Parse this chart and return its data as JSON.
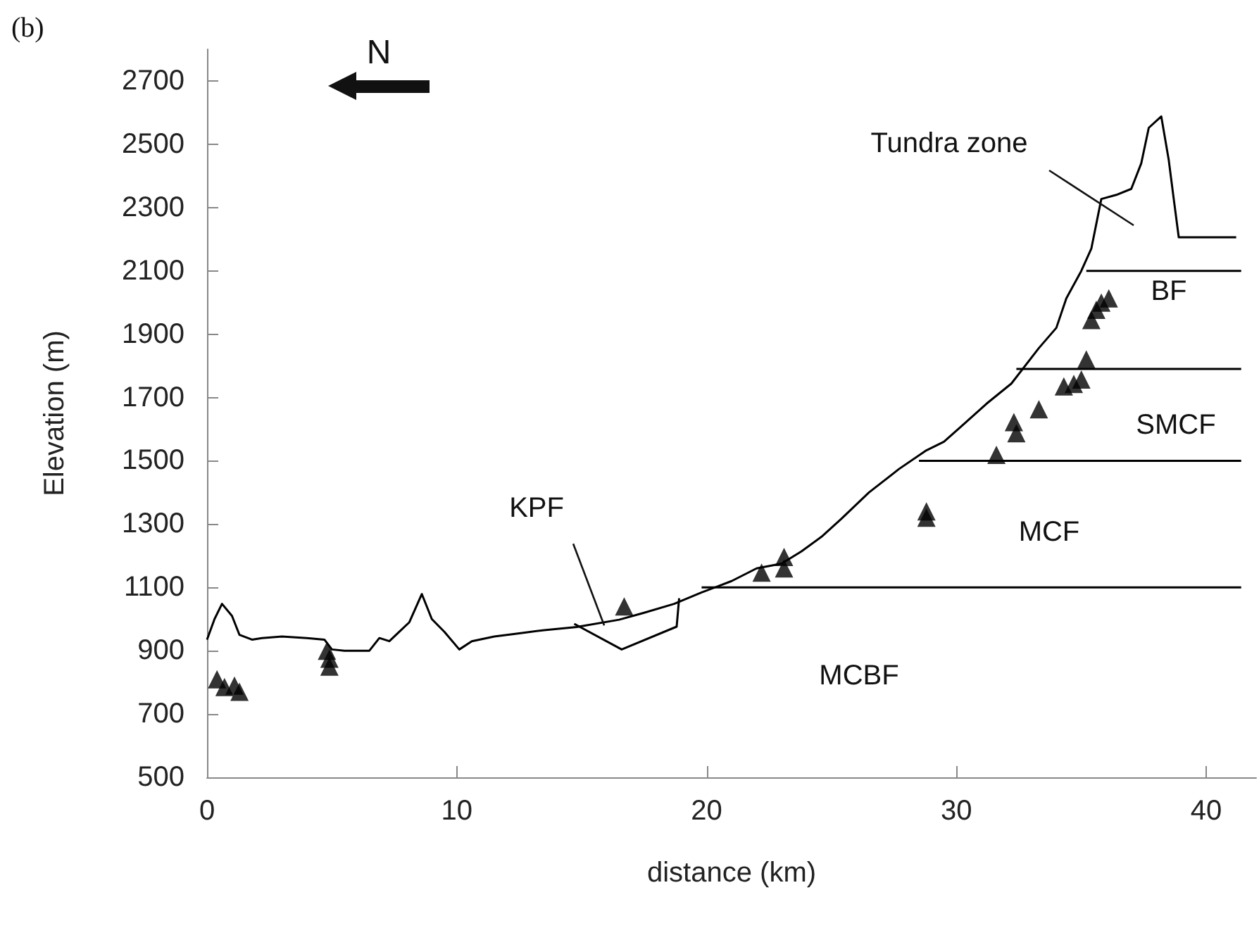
{
  "chart_data": {
    "type": "line",
    "xlabel": "distance (km)",
    "ylabel": "Elevation (m)",
    "annotations": [
      "(b)",
      "N",
      "Tundra zone",
      {
        "text": "KPF",
        "x": 15.9,
        "y": 980
      },
      "BF",
      "SMCF",
      "MCF",
      "MCBF"
    ],
    "series": [
      {
        "color": "#000000",
        "marker": "none",
        "x": [
          0,
          0.3,
          0.6,
          1.0,
          1.3,
          1.8,
          2.2,
          3.0,
          4.0,
          4.7,
          5.0,
          5.5,
          6.5,
          6.9,
          7.3,
          7.7,
          8.1,
          8.6,
          9.0,
          9.5,
          10.1,
          10.6,
          11.5,
          12.5,
          13.5,
          14.8,
          16.5,
          17.5,
          18.7,
          19.8,
          21.0,
          22.0,
          23.0,
          23.8,
          24.6,
          25.4,
          26.5,
          27.7,
          28.8,
          29.5,
          30.2,
          31.2,
          32.2,
          33.3,
          34.0,
          34.4,
          35.0,
          35.4,
          35.8,
          36.4,
          37.0,
          37.4,
          37.7,
          38.2,
          38.5,
          38.7,
          38.9,
          41.2
        ],
        "values": [
          935,
          1000,
          1048,
          1010,
          950,
          935,
          940,
          945,
          940,
          935,
          904,
          900,
          900,
          940,
          930,
          960,
          990,
          1079,
          1000,
          960,
          904,
          930,
          945,
          955,
          965,
          975,
          998,
          1020,
          1048,
          1084,
          1120,
          1160,
          1175,
          1214,
          1260,
          1317,
          1400,
          1474,
          1533,
          1560,
          1609,
          1680,
          1744,
          1856,
          1920,
          2013,
          2100,
          2170,
          2327,
          2340,
          2359,
          2440,
          2552,
          2588,
          2450,
          2327,
          2206,
          2206
        ]
      },
      {
        "type": "scatter",
        "color": "#000000",
        "marker": "triangle",
        "x": [
          0.4,
          0.7,
          1.1,
          1.3,
          4.8,
          4.9,
          4.9,
          16.7,
          22.2,
          23.1,
          23.1,
          28.8,
          28.8,
          31.6,
          32.3,
          32.4,
          33.3,
          34.3,
          34.7,
          35.0,
          35.2,
          35.6,
          35.8,
          36.1,
          35.4
        ],
        "values": [
          810,
          785,
          790,
          770,
          900,
          875,
          850,
          1040,
          1147,
          1196,
          1160,
          1340,
          1320,
          1519,
          1622,
          1587,
          1663,
          1735,
          1743,
          1757,
          1820,
          1977,
          2000,
          2013,
          1945
        ]
      },
      {
        "type": "line",
        "color": "#000000",
        "marker": "none",
        "x": [
          19.8,
          41.4
        ],
        "values": [
          1100,
          1100
        ]
      },
      {
        "type": "line",
        "color": "#000000",
        "marker": "none",
        "x": [
          28.5,
          41.4
        ],
        "values": [
          1500,
          1500
        ]
      },
      {
        "type": "line",
        "color": "#000000",
        "marker": "none",
        "x": [
          32.4,
          41.4
        ],
        "values": [
          1790,
          1790
        ]
      },
      {
        "type": "line",
        "color": "#000000",
        "marker": "none",
        "x": [
          35.2,
          41.4
        ],
        "values": [
          2100,
          2100
        ]
      },
      {
        "type": "line",
        "color": "#000000",
        "marker": "none",
        "x": [
          14.7,
          16.6,
          18.8,
          18.9
        ],
        "values": [
          985,
          904,
          976,
          1066
        ]
      }
    ],
    "xlim": [
      0,
      42
    ],
    "xticks": [
      0,
      10,
      20,
      30,
      40
    ],
    "ylim": [
      500,
      2800
    ],
    "yticks": [
      500,
      700,
      900,
      1100,
      1300,
      1500,
      1700,
      1900,
      2100,
      2300,
      2500,
      2700
    ],
    "grid": false,
    "line_style": "solid"
  }
}
